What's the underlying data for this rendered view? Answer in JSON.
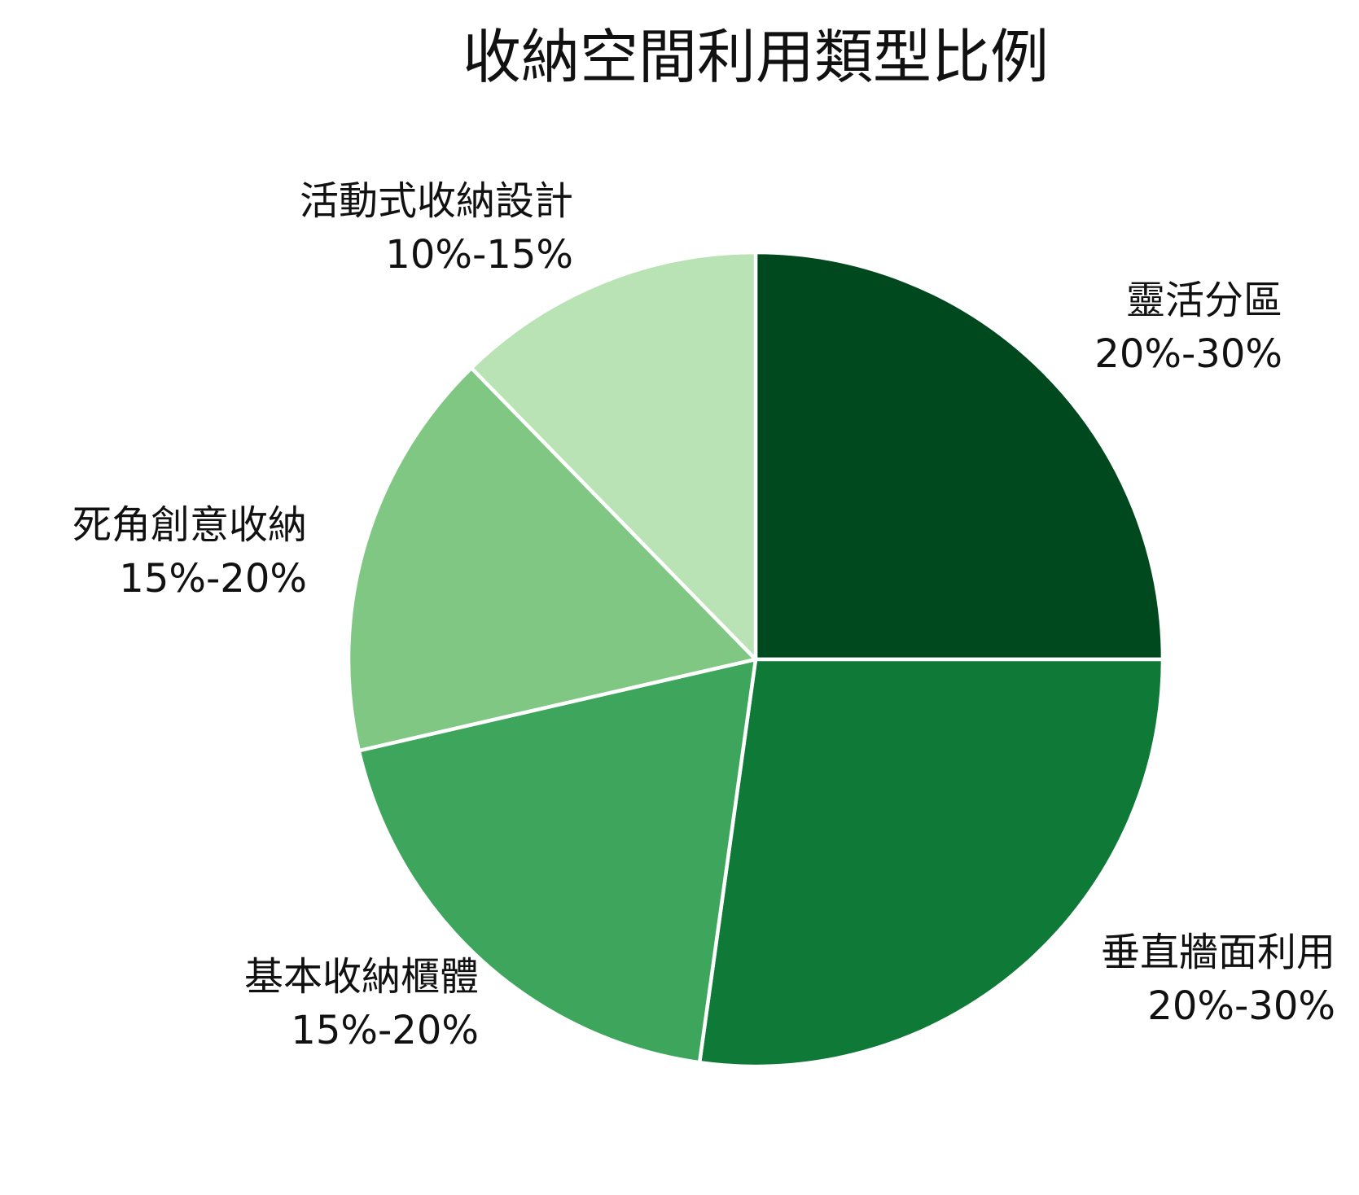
{
  "chart_data": {
    "type": "pie",
    "title": "收納空間利用類型比例",
    "start": "12 o'clock",
    "direction": "clockwise",
    "slices": [
      {
        "label": "靈活分區",
        "range_text": "20%-30%",
        "value": 25,
        "color": "#00491e"
      },
      {
        "label": "垂直牆面利用",
        "range_text": "20%-30%",
        "value": 27.2,
        "color": "#0f7938"
      },
      {
        "label": "基本收納櫃體",
        "range_text": "15%-20%",
        "value": 19.2,
        "color": "#3ea55c"
      },
      {
        "label": "死角創意收納",
        "range_text": "15%-20%",
        "value": 16.3,
        "color": "#81c784"
      },
      {
        "label": "活動式收納設計",
        "range_text": "10%-15%",
        "value": 12.3,
        "color": "#b9e3b4"
      }
    ]
  }
}
